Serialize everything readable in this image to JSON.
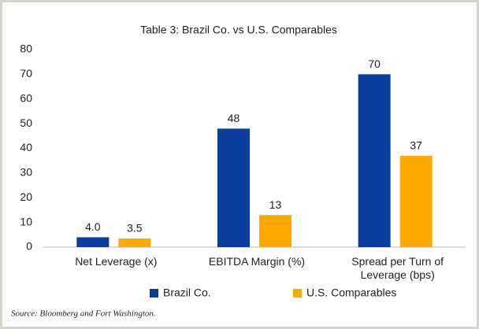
{
  "chart_data": {
    "type": "bar",
    "title": "Table 3: Brazil Co. vs U.S. Comparables",
    "categories": [
      "Net Leverage (x)",
      "EBITDA Margin (%)",
      "Spread per Turn of Leverage (bps)"
    ],
    "series": [
      {
        "name": "Brazil Co.",
        "color": "#0b3d9e",
        "values": [
          4,
          48,
          70
        ],
        "value_labels": [
          "4.0",
          "48",
          "70"
        ]
      },
      {
        "name": "U.S. Comparables",
        "color": "#ffa800",
        "values": [
          3.5,
          13,
          37
        ],
        "value_labels": [
          "3.5",
          "13",
          "37"
        ]
      }
    ],
    "ylim": [
      0,
      80
    ],
    "yticks": [
      0,
      10,
      20,
      30,
      40,
      50,
      60,
      70,
      80
    ],
    "grid": false,
    "legend": "bottom",
    "source": "Source: Bloomberg and Fort Washington."
  }
}
